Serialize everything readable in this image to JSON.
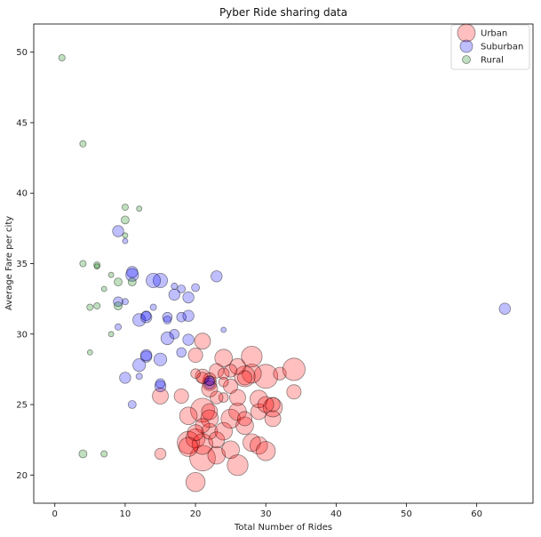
{
  "chart_data": {
    "type": "scatter",
    "title": "Pyber Ride sharing data",
    "xlabel": "Total Number of Rides",
    "ylabel": "Average Fare per city",
    "xlim": [
      -3,
      68
    ],
    "ylim": [
      18,
      52
    ],
    "xticks": [
      0,
      10,
      20,
      30,
      40,
      50,
      60
    ],
    "yticks": [
      20,
      25,
      30,
      35,
      40,
      45,
      50
    ],
    "grid": false,
    "legend_position": "top-right",
    "series": [
      {
        "name": "Urban",
        "color": "#ff0000",
        "points": [
          [
            20,
            19.5,
            0.6
          ],
          [
            21,
            21.2,
            0.8
          ],
          [
            19,
            22.3,
            0.7
          ],
          [
            20,
            22.6,
            0.6
          ],
          [
            21,
            22.2,
            0.65
          ],
          [
            22,
            23.1,
            0.5
          ],
          [
            21,
            24.6,
            0.75
          ],
          [
            19,
            24.2,
            0.55
          ],
          [
            18,
            25.6,
            0.45
          ],
          [
            15,
            25.6,
            0.5
          ],
          [
            15,
            21.5,
            0.35
          ],
          [
            23,
            21.4,
            0.55
          ],
          [
            23,
            22.5,
            0.5
          ],
          [
            24,
            23.1,
            0.55
          ],
          [
            25,
            21.8,
            0.55
          ],
          [
            26,
            20.7,
            0.65
          ],
          [
            25,
            24.0,
            0.6
          ],
          [
            26,
            24.5,
            0.55
          ],
          [
            26,
            25.5,
            0.5
          ],
          [
            24,
            25.5,
            0.3
          ],
          [
            27,
            23.5,
            0.55
          ],
          [
            27,
            24.0,
            0.45
          ],
          [
            28,
            22.3,
            0.55
          ],
          [
            29,
            22.1,
            0.55
          ],
          [
            29,
            24.5,
            0.5
          ],
          [
            29,
            25.4,
            0.55
          ],
          [
            30,
            21.7,
            0.6
          ],
          [
            31,
            24.0,
            0.5
          ],
          [
            31,
            24.8,
            0.6
          ],
          [
            31,
            25.0,
            0.45
          ],
          [
            30,
            27.0,
            0.75
          ],
          [
            28,
            27.2,
            0.6
          ],
          [
            27,
            27.0,
            0.65
          ],
          [
            27,
            26.9,
            0.45
          ],
          [
            26,
            27.7,
            0.5
          ],
          [
            25,
            27.4,
            0.4
          ],
          [
            24,
            28.3,
            0.55
          ],
          [
            28,
            28.4,
            0.65
          ],
          [
            32,
            27.2,
            0.4
          ],
          [
            34,
            27.5,
            0.7
          ],
          [
            34,
            25.9,
            0.45
          ],
          [
            22,
            26.5,
            0.45
          ],
          [
            22,
            26.1,
            0.5
          ],
          [
            22,
            26.8,
            0.4
          ],
          [
            21,
            27.0,
            0.45
          ],
          [
            21,
            26.9,
            0.35
          ],
          [
            23,
            27.4,
            0.45
          ],
          [
            20,
            27.2,
            0.3
          ],
          [
            21,
            29.5,
            0.5
          ],
          [
            20,
            28.5,
            0.45
          ],
          [
            24,
            27.2,
            0.35
          ],
          [
            25,
            26.3,
            0.45
          ],
          [
            23,
            25.5,
            0.4
          ],
          [
            22,
            24.5,
            0.5
          ],
          [
            22,
            24.0,
            0.55
          ],
          [
            21,
            23.5,
            0.45
          ],
          [
            20,
            23.0,
            0.5
          ],
          [
            19,
            22.0,
            0.6
          ],
          [
            24,
            26.6,
            0.3
          ],
          [
            30,
            25.0,
            0.5
          ]
        ]
      },
      {
        "name": "Suburban",
        "color": "#0000ff",
        "points": [
          [
            64,
            31.8,
            0.35
          ],
          [
            23,
            34.1,
            0.35
          ],
          [
            20,
            33.3,
            0.25
          ],
          [
            18,
            33.2,
            0.25
          ],
          [
            17,
            33.4,
            0.2
          ],
          [
            15,
            33.8,
            0.45
          ],
          [
            14,
            33.8,
            0.45
          ],
          [
            11,
            34.4,
            0.35
          ],
          [
            11,
            34.2,
            0.4
          ],
          [
            9,
            37.3,
            0.35
          ],
          [
            10,
            36.6,
            0.15
          ],
          [
            9,
            32.3,
            0.3
          ],
          [
            10,
            32.3,
            0.2
          ],
          [
            9,
            30.5,
            0.2
          ],
          [
            12,
            31.0,
            0.4
          ],
          [
            13,
            31.2,
            0.35
          ],
          [
            13,
            31.3,
            0.3
          ],
          [
            14,
            31.9,
            0.2
          ],
          [
            16,
            31.2,
            0.3
          ],
          [
            18,
            31.2,
            0.3
          ],
          [
            19,
            31.3,
            0.35
          ],
          [
            19,
            32.6,
            0.35
          ],
          [
            17,
            32.8,
            0.35
          ],
          [
            16,
            29.7,
            0.4
          ],
          [
            17,
            30.0,
            0.3
          ],
          [
            19,
            29.6,
            0.35
          ],
          [
            18,
            28.7,
            0.3
          ],
          [
            13,
            28.4,
            0.35
          ],
          [
            13,
            28.5,
            0.35
          ],
          [
            12,
            27.8,
            0.4
          ],
          [
            15,
            28.2,
            0.4
          ],
          [
            12,
            27.0,
            0.2
          ],
          [
            10,
            26.9,
            0.35
          ],
          [
            15,
            26.3,
            0.35
          ],
          [
            15,
            26.5,
            0.3
          ],
          [
            11,
            25.0,
            0.25
          ],
          [
            24,
            30.3,
            0.1
          ],
          [
            22,
            26.5,
            0.35
          ],
          [
            22,
            26.7,
            0.3
          ],
          [
            16,
            31.0,
            0.25
          ]
        ]
      },
      {
        "name": "Rural",
        "color": "#008000",
        "points": [
          [
            1,
            49.6,
            0.2
          ],
          [
            4,
            43.5,
            0.2
          ],
          [
            10,
            39.0,
            0.2
          ],
          [
            12,
            38.9,
            0.15
          ],
          [
            10,
            38.1,
            0.25
          ],
          [
            10,
            37.0,
            0.15
          ],
          [
            4,
            35.0,
            0.2
          ],
          [
            6,
            34.9,
            0.2
          ],
          [
            6,
            34.8,
            0.15
          ],
          [
            8,
            34.2,
            0.15
          ],
          [
            9,
            33.7,
            0.25
          ],
          [
            11,
            33.7,
            0.25
          ],
          [
            7,
            33.2,
            0.15
          ],
          [
            5,
            31.9,
            0.2
          ],
          [
            6,
            32.0,
            0.2
          ],
          [
            9,
            32.0,
            0.25
          ],
          [
            8,
            30.0,
            0.15
          ],
          [
            5,
            28.7,
            0.15
          ],
          [
            4,
            21.5,
            0.25
          ],
          [
            7,
            21.5,
            0.2
          ]
        ]
      }
    ]
  }
}
